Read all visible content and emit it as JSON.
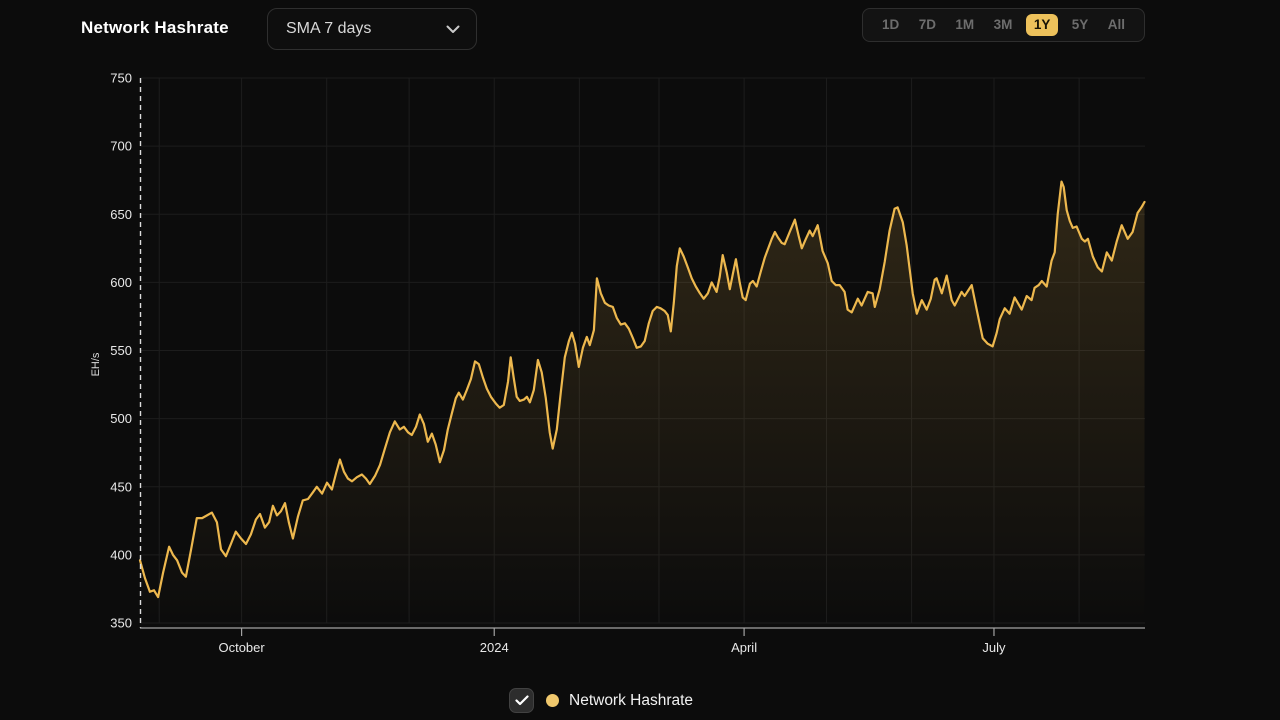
{
  "header": {
    "title": "Network Hashrate",
    "sma_dropdown": {
      "value": "SMA 7 days"
    },
    "range_selector": {
      "options": [
        "1D",
        "7D",
        "1M",
        "3M",
        "1Y",
        "5Y",
        "All"
      ],
      "selected": "1Y"
    }
  },
  "legend": {
    "checked": true,
    "label": "Network Hashrate"
  },
  "colors": {
    "background": "#0c0c0c",
    "line_gold": "#edb84e",
    "selected_range_bg": "#edc15b",
    "gridline": "#1d1d1d",
    "axis_line": "#a3a3a3",
    "tick_text": "#e8e8e8",
    "muted_text": "#6d6d6d"
  },
  "chart_data": {
    "type": "area",
    "title": "Network Hashrate",
    "ylabel": "EH/s",
    "ylim": [
      350,
      750
    ],
    "y_ticks": [
      350,
      400,
      450,
      500,
      550,
      600,
      650,
      700,
      750
    ],
    "xlim_days": [
      0,
      366
    ],
    "x_ticks": [
      {
        "label": "October",
        "day": 37
      },
      {
        "label": "2024",
        "day": 129
      },
      {
        "label": "April",
        "day": 220
      },
      {
        "label": "July",
        "day": 311
      }
    ],
    "x_gridline_days": [
      7,
      37,
      68,
      98,
      129,
      160,
      189,
      220,
      250,
      281,
      311,
      342
    ],
    "legend_position": "bottom",
    "grid": true,
    "start_marker": "dashed-vertical-line-at-day-0",
    "series": [
      {
        "name": "Network Hashrate",
        "unit": "EH/s",
        "points": [
          [
            0,
            396
          ],
          [
            1.8,
            383
          ],
          [
            3.6,
            373
          ],
          [
            5.1,
            374
          ],
          [
            6.6,
            369
          ],
          [
            8.4,
            387
          ],
          [
            10.6,
            406
          ],
          [
            12,
            400
          ],
          [
            13.5,
            396
          ],
          [
            15.3,
            387
          ],
          [
            16.7,
            384
          ],
          [
            18.6,
            404
          ],
          [
            20.7,
            427
          ],
          [
            22.6,
            427
          ],
          [
            24.4,
            429
          ],
          [
            26.2,
            431
          ],
          [
            28,
            424
          ],
          [
            29.5,
            404
          ],
          [
            31.3,
            399
          ],
          [
            33.1,
            408
          ],
          [
            34.9,
            417
          ],
          [
            36.8,
            412
          ],
          [
            38.6,
            408
          ],
          [
            40.4,
            415
          ],
          [
            42.2,
            426
          ],
          [
            43.7,
            430
          ],
          [
            45.5,
            420
          ],
          [
            47,
            424
          ],
          [
            48.4,
            436
          ],
          [
            49.9,
            429
          ],
          [
            51.3,
            432
          ],
          [
            52.8,
            438
          ],
          [
            54.2,
            424
          ],
          [
            55.7,
            412
          ],
          [
            57.5,
            428
          ],
          [
            59.3,
            440
          ],
          [
            61.2,
            441
          ],
          [
            63,
            446
          ],
          [
            64.4,
            450
          ],
          [
            66.3,
            445
          ],
          [
            68.1,
            453
          ],
          [
            69.9,
            448
          ],
          [
            71.4,
            460
          ],
          [
            72.8,
            470
          ],
          [
            74.3,
            461
          ],
          [
            75.7,
            456
          ],
          [
            77.2,
            454
          ],
          [
            79,
            457
          ],
          [
            80.8,
            459
          ],
          [
            82.3,
            456
          ],
          [
            83.7,
            452
          ],
          [
            85.6,
            458
          ],
          [
            87.4,
            466
          ],
          [
            89.2,
            478
          ],
          [
            91,
            490
          ],
          [
            92.8,
            498
          ],
          [
            94.6,
            492
          ],
          [
            96.1,
            494
          ],
          [
            97.6,
            490
          ],
          [
            99,
            488
          ],
          [
            100.5,
            494
          ],
          [
            101.9,
            503
          ],
          [
            103.4,
            496
          ],
          [
            104.8,
            483
          ],
          [
            106.3,
            489
          ],
          [
            107.7,
            481
          ],
          [
            109.2,
            468
          ],
          [
            110.7,
            477
          ],
          [
            112.1,
            492
          ],
          [
            113.6,
            504
          ],
          [
            115,
            515
          ],
          [
            116.1,
            519
          ],
          [
            117.6,
            514
          ],
          [
            119,
            521
          ],
          [
            120.5,
            529
          ],
          [
            122,
            542
          ],
          [
            123.4,
            540
          ],
          [
            124.9,
            530
          ],
          [
            126.3,
            522
          ],
          [
            127.8,
            516
          ],
          [
            129.6,
            511
          ],
          [
            131,
            508
          ],
          [
            132.5,
            510
          ],
          [
            134,
            527
          ],
          [
            135,
            545
          ],
          [
            136.1,
            530
          ],
          [
            137.2,
            516
          ],
          [
            138.3,
            513
          ],
          [
            139.8,
            514
          ],
          [
            140.9,
            516
          ],
          [
            142,
            512
          ],
          [
            143.4,
            521
          ],
          [
            144.9,
            543
          ],
          [
            146.3,
            534
          ],
          [
            147.8,
            515
          ],
          [
            149.2,
            490
          ],
          [
            150.3,
            478
          ],
          [
            151.8,
            492
          ],
          [
            153.3,
            520
          ],
          [
            154.7,
            545
          ],
          [
            156.2,
            557
          ],
          [
            157.3,
            563
          ],
          [
            158.4,
            555
          ],
          [
            159.8,
            538
          ],
          [
            161.3,
            552
          ],
          [
            162.7,
            560
          ],
          [
            163.8,
            554
          ],
          [
            165.3,
            565
          ],
          [
            166.4,
            603
          ],
          [
            167.8,
            592
          ],
          [
            169.3,
            585
          ],
          [
            170.7,
            583
          ],
          [
            172.2,
            582
          ],
          [
            173.6,
            574
          ],
          [
            175.1,
            569
          ],
          [
            176.6,
            570
          ],
          [
            178,
            566
          ],
          [
            179.5,
            559
          ],
          [
            180.9,
            552
          ],
          [
            182.4,
            553
          ],
          [
            183.8,
            557
          ],
          [
            185.3,
            570
          ],
          [
            186.7,
            579
          ],
          [
            188.2,
            582
          ],
          [
            189.6,
            581
          ],
          [
            191.1,
            579
          ],
          [
            192.2,
            576
          ],
          [
            193.3,
            564
          ],
          [
            194.4,
            585
          ],
          [
            195.5,
            612
          ],
          [
            196.6,
            625
          ],
          [
            198,
            619
          ],
          [
            199.5,
            611
          ],
          [
            200.9,
            603
          ],
          [
            202.4,
            597
          ],
          [
            203.9,
            592
          ],
          [
            205.3,
            588
          ],
          [
            206.8,
            592
          ],
          [
            208.2,
            600
          ],
          [
            210,
            593
          ],
          [
            211.1,
            604
          ],
          [
            212.2,
            620
          ],
          [
            213.7,
            607
          ],
          [
            214.8,
            595
          ],
          [
            215.9,
            606
          ],
          [
            217,
            617
          ],
          [
            218.4,
            600
          ],
          [
            219.5,
            589
          ],
          [
            220.6,
            587
          ],
          [
            222.1,
            599
          ],
          [
            223.2,
            601
          ],
          [
            224.6,
            597
          ],
          [
            226.1,
            608
          ],
          [
            227.5,
            618
          ],
          [
            228.6,
            624
          ],
          [
            230.1,
            632
          ],
          [
            231.2,
            637
          ],
          [
            232.3,
            633
          ],
          [
            233.7,
            629
          ],
          [
            234.8,
            628
          ],
          [
            236.6,
            637
          ],
          [
            238.5,
            646
          ],
          [
            239.9,
            634
          ],
          [
            241,
            625
          ],
          [
            242.5,
            632
          ],
          [
            243.9,
            638
          ],
          [
            245,
            634
          ],
          [
            246.8,
            642
          ],
          [
            248.6,
            623
          ],
          [
            250.5,
            614
          ],
          [
            251.9,
            601
          ],
          [
            253.4,
            598
          ],
          [
            254.8,
            598
          ],
          [
            256.6,
            593
          ],
          [
            257.7,
            580
          ],
          [
            259.2,
            578
          ],
          [
            261.4,
            588
          ],
          [
            262.8,
            583
          ],
          [
            265,
            593
          ],
          [
            266.8,
            592
          ],
          [
            267.6,
            582
          ],
          [
            269.4,
            595
          ],
          [
            271.2,
            615
          ],
          [
            273,
            638
          ],
          [
            274.8,
            654
          ],
          [
            275.9,
            655
          ],
          [
            277.8,
            644
          ],
          [
            279.2,
            627
          ],
          [
            281.4,
            592
          ],
          [
            282.9,
            577
          ],
          [
            284.7,
            587
          ],
          [
            286.5,
            580
          ],
          [
            288,
            588
          ],
          [
            289.4,
            602
          ],
          [
            290.1,
            603
          ],
          [
            292,
            592
          ],
          [
            293.8,
            605
          ],
          [
            295.6,
            587
          ],
          [
            296.7,
            583
          ],
          [
            299.2,
            593
          ],
          [
            300.3,
            590
          ],
          [
            302.9,
            598
          ],
          [
            304.7,
            580
          ],
          [
            306.9,
            559
          ],
          [
            308.7,
            555
          ],
          [
            310.5,
            553
          ],
          [
            312,
            563
          ],
          [
            313.1,
            573
          ],
          [
            314.9,
            581
          ],
          [
            316.7,
            577
          ],
          [
            318.5,
            589
          ],
          [
            321.1,
            580
          ],
          [
            322.9,
            590
          ],
          [
            324.7,
            587
          ],
          [
            325.8,
            596
          ],
          [
            327.3,
            598
          ],
          [
            328.4,
            601
          ],
          [
            330.2,
            597
          ],
          [
            332,
            616
          ],
          [
            333.1,
            622
          ],
          [
            334.2,
            650
          ],
          [
            335.6,
            674
          ],
          [
            336.4,
            670
          ],
          [
            337.5,
            653
          ],
          [
            338.6,
            645
          ],
          [
            339.7,
            640
          ],
          [
            341.1,
            641
          ],
          [
            343,
            632
          ],
          [
            344.1,
            630
          ],
          [
            345.2,
            632
          ],
          [
            347,
            619
          ],
          [
            348.8,
            611
          ],
          [
            350.3,
            608
          ],
          [
            352.1,
            622
          ],
          [
            353.9,
            616
          ],
          [
            355.7,
            630
          ],
          [
            357.5,
            642
          ],
          [
            359.7,
            632
          ],
          [
            361.5,
            637
          ],
          [
            363.3,
            651
          ],
          [
            364.7,
            655
          ],
          [
            365.8,
            659
          ]
        ]
      }
    ]
  }
}
